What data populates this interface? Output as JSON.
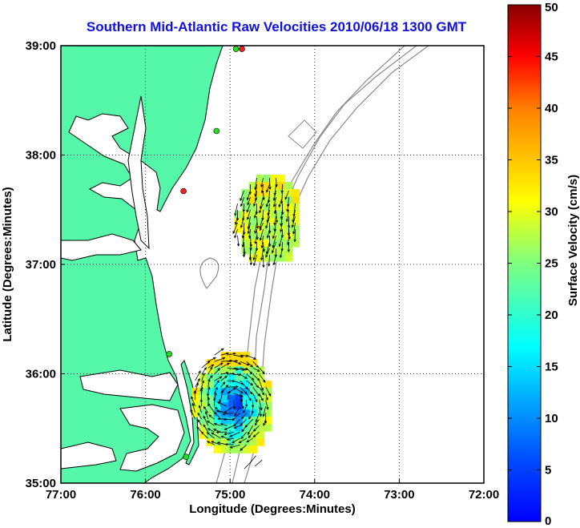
{
  "title": "Southern Mid-Atlantic Raw Velocities 2010/06/18 1300 GMT",
  "xlabel": "Longitude (Degrees:Minutes)",
  "ylabel": "Latitude (Degrees:Minutes)",
  "colorbar_label": "Surface Velocity (cm/s)",
  "colors": {
    "land": "#55f7a8",
    "coast": "#000000",
    "bathymetry": "#8a8a8a",
    "grid": "#000000",
    "title": "#1010e0",
    "station_green": "#22dd22",
    "station_red": "#ee2222"
  },
  "chart_data": {
    "type": "map",
    "xlim": [
      -77,
      -72
    ],
    "ylim": [
      35,
      39
    ],
    "x_ticks": [
      {
        "value": -77,
        "label": "77:00"
      },
      {
        "value": -76,
        "label": "76:00"
      },
      {
        "value": -75,
        "label": "75:00"
      },
      {
        "value": -74,
        "label": "74:00"
      },
      {
        "value": -73,
        "label": "73:00"
      },
      {
        "value": -72,
        "label": "72:00"
      }
    ],
    "y_ticks": [
      {
        "value": 35,
        "label": "35:00"
      },
      {
        "value": 36,
        "label": "36:00"
      },
      {
        "value": 37,
        "label": "37:00"
      },
      {
        "value": 38,
        "label": "38:00"
      },
      {
        "value": 39,
        "label": "39:00"
      }
    ],
    "grid": true,
    "colorbar": {
      "min": 0,
      "max": 50,
      "ticks": [
        {
          "value": 0,
          "label": "0"
        },
        {
          "value": 5,
          "label": "5"
        },
        {
          "value": 10,
          "label": "10"
        },
        {
          "value": 15,
          "label": "15"
        },
        {
          "value": 20,
          "label": "20"
        },
        {
          "value": 25,
          "label": "25"
        },
        {
          "value": 30,
          "label": "30"
        },
        {
          "value": 35,
          "label": "35"
        },
        {
          "value": 40,
          "label": "40"
        },
        {
          "value": 45,
          "label": "45"
        },
        {
          "value": 50,
          "label": "50"
        }
      ],
      "colormap": "jet"
    },
    "stations": [
      {
        "lon": -74.86,
        "lat": 38.97,
        "status": "red"
      },
      {
        "lon": -74.93,
        "lat": 38.97,
        "status": "green"
      },
      {
        "lon": -75.16,
        "lat": 38.22,
        "status": "green"
      },
      {
        "lon": -75.55,
        "lat": 37.67,
        "status": "red"
      },
      {
        "lon": -75.72,
        "lat": 36.18,
        "status": "green"
      },
      {
        "lon": -75.52,
        "lat": 35.24,
        "status": "green"
      }
    ],
    "velocity_regions": [
      {
        "name": "northern",
        "lon_range": [
          -74.95,
          -74.2
        ],
        "lat_range": [
          37.05,
          37.82
        ],
        "speed_range": [
          18,
          34
        ]
      },
      {
        "name": "southern",
        "lon_range": [
          -75.45,
          -74.55
        ],
        "lat_range": [
          35.3,
          36.2
        ],
        "speed_range": [
          5,
          33
        ]
      }
    ]
  }
}
